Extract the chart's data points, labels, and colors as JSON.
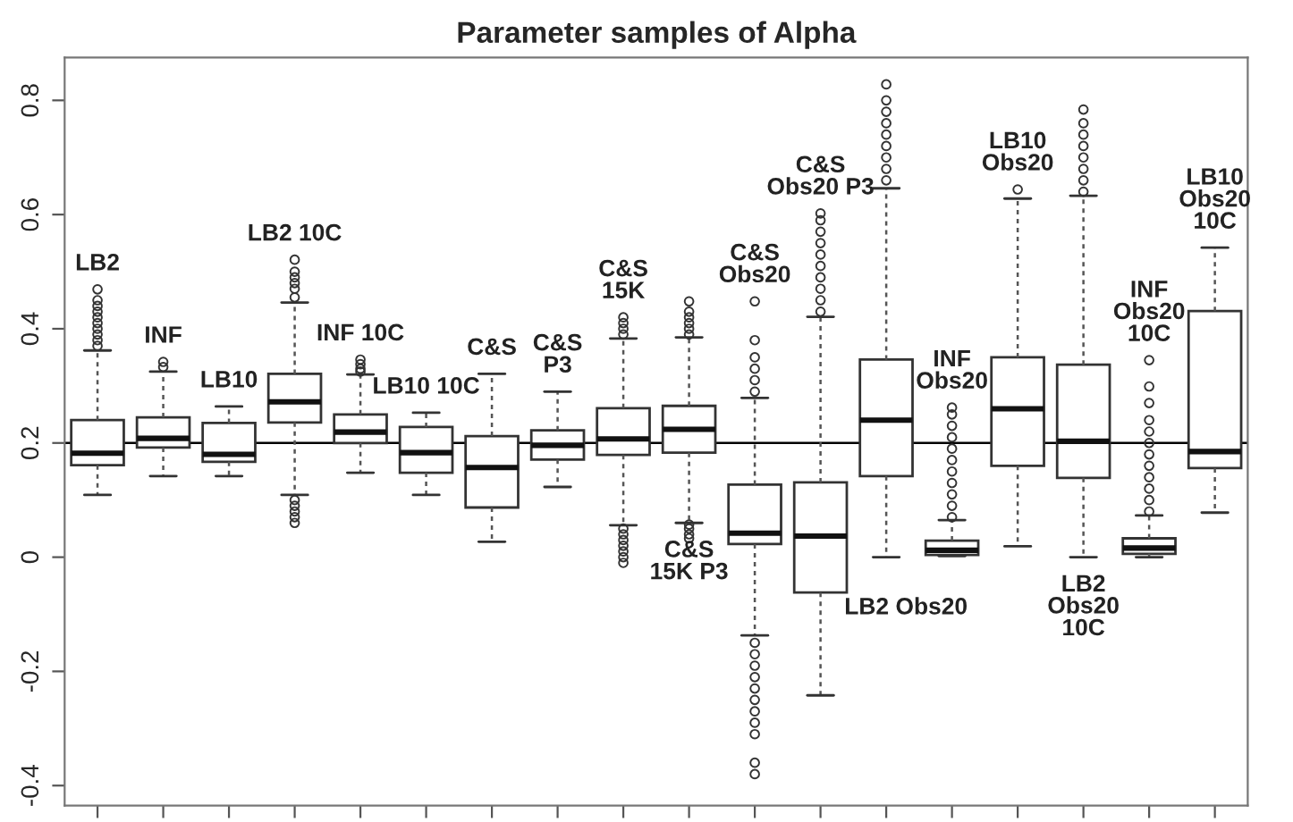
{
  "chart_data": {
    "type": "box",
    "title": "Parameter samples of Alpha",
    "categories": [
      null,
      null,
      null,
      null,
      null,
      null,
      null,
      null,
      null,
      null,
      null,
      null,
      null,
      null,
      null,
      null,
      null,
      null
    ],
    "boxes": [
      {
        "low": 0.109,
        "q1": 0.161,
        "median": 0.182,
        "q3": 0.24,
        "high": 0.362,
        "outliers": [
          0.37,
          0.38,
          0.39,
          0.4,
          0.41,
          0.42,
          0.43,
          0.44,
          0.45,
          0.469
        ]
      },
      {
        "low": 0.142,
        "q1": 0.192,
        "median": 0.208,
        "q3": 0.245,
        "high": 0.325,
        "outliers": [
          0.333,
          0.342
        ]
      },
      {
        "low": 0.142,
        "q1": 0.167,
        "median": 0.18,
        "q3": 0.235,
        "high": 0.264
      },
      {
        "low": 0.109,
        "q1": 0.236,
        "median": 0.272,
        "q3": 0.321,
        "high": 0.446,
        "outliers": [
          0.06,
          0.07,
          0.08,
          0.09,
          0.1,
          0.455,
          0.47,
          0.48,
          0.49,
          0.5,
          0.521
        ]
      },
      {
        "low": 0.148,
        "q1": 0.2,
        "median": 0.219,
        "q3": 0.25,
        "high": 0.32,
        "outliers": [
          0.325,
          0.33,
          0.338,
          0.346
        ]
      },
      {
        "low": 0.109,
        "q1": 0.148,
        "median": 0.183,
        "q3": 0.228,
        "high": 0.253
      },
      {
        "low": 0.027,
        "q1": 0.087,
        "median": 0.157,
        "q3": 0.212,
        "high": 0.321
      },
      {
        "low": 0.123,
        "q1": 0.171,
        "median": 0.196,
        "q3": 0.222,
        "high": 0.29
      },
      {
        "low": 0.056,
        "q1": 0.179,
        "median": 0.207,
        "q3": 0.261,
        "high": 0.383,
        "outliers": [
          -0.01,
          0.0,
          0.01,
          0.02,
          0.03,
          0.04,
          0.05,
          0.39,
          0.4,
          0.41,
          0.42
        ]
      },
      {
        "low": 0.06,
        "q1": 0.183,
        "median": 0.224,
        "q3": 0.265,
        "high": 0.385,
        "outliers": [
          0.033,
          0.04,
          0.05,
          0.057,
          0.39,
          0.4,
          0.41,
          0.42,
          0.43,
          0.448
        ]
      },
      {
        "low": -0.137,
        "q1": 0.023,
        "median": 0.042,
        "q3": 0.127,
        "high": 0.279,
        "outliers": [
          -0.38,
          -0.36,
          -0.31,
          -0.29,
          -0.27,
          -0.25,
          -0.23,
          -0.21,
          -0.19,
          -0.17,
          -0.15,
          0.29,
          0.31,
          0.33,
          0.35,
          0.38,
          0.448
        ]
      },
      {
        "low": -0.242,
        "q1": -0.062,
        "median": 0.037,
        "q3": 0.131,
        "high": 0.421,
        "outliers": [
          0.43,
          0.45,
          0.47,
          0.49,
          0.51,
          0.53,
          0.55,
          0.57,
          0.59,
          0.602
        ]
      },
      {
        "low": 0.0,
        "q1": 0.142,
        "median": 0.24,
        "q3": 0.346,
        "high": 0.646,
        "outliers": [
          0.66,
          0.68,
          0.7,
          0.72,
          0.74,
          0.76,
          0.78,
          0.8,
          0.828
        ]
      },
      {
        "low": 0.002,
        "q1": 0.004,
        "median": 0.012,
        "q3": 0.029,
        "high": 0.065,
        "outliers": [
          0.07,
          0.09,
          0.11,
          0.13,
          0.15,
          0.17,
          0.19,
          0.21,
          0.23,
          0.25,
          0.262
        ]
      },
      {
        "low": 0.019,
        "q1": 0.16,
        "median": 0.26,
        "q3": 0.35,
        "high": 0.628,
        "outliers": [
          0.644
        ]
      },
      {
        "low": 0.0,
        "q1": 0.139,
        "median": 0.203,
        "q3": 0.337,
        "high": 0.633,
        "outliers": [
          0.64,
          0.66,
          0.68,
          0.7,
          0.72,
          0.74,
          0.76,
          0.784
        ]
      },
      {
        "low": 0.0,
        "q1": 0.006,
        "median": 0.016,
        "q3": 0.033,
        "high": 0.073,
        "outliers": [
          0.08,
          0.1,
          0.12,
          0.14,
          0.16,
          0.18,
          0.2,
          0.22,
          0.24,
          0.27,
          0.299,
          0.345
        ]
      },
      {
        "low": 0.078,
        "q1": 0.156,
        "median": 0.185,
        "q3": 0.431,
        "high": 0.542
      }
    ],
    "ylim": [
      -0.435,
      0.875
    ],
    "yticks": [
      -0.4,
      -0.2,
      0,
      0.2,
      0.4,
      0.6,
      0.8
    ],
    "ref_lines": [
      {
        "axis": "y",
        "value": 0.2,
        "color": "#000000"
      }
    ],
    "annotations": [
      "LB2",
      "INF",
      "LB10",
      "LB2 10C",
      "INF 10C",
      "LB10 10C",
      "C&S",
      "C&S\nP3",
      "C&S\n15K",
      "C&S\n15K P3",
      "C&S\nObs20",
      "C&S\nObs20 P3",
      "LB2 Obs20",
      "INF\nObs20",
      "LB10\nObs20",
      "LB2\nObs20\n10C",
      "INF\nObs20\n10C",
      "LB10\nObs20\n10C"
    ],
    "tick_labels": "y",
    "grid": false
  }
}
